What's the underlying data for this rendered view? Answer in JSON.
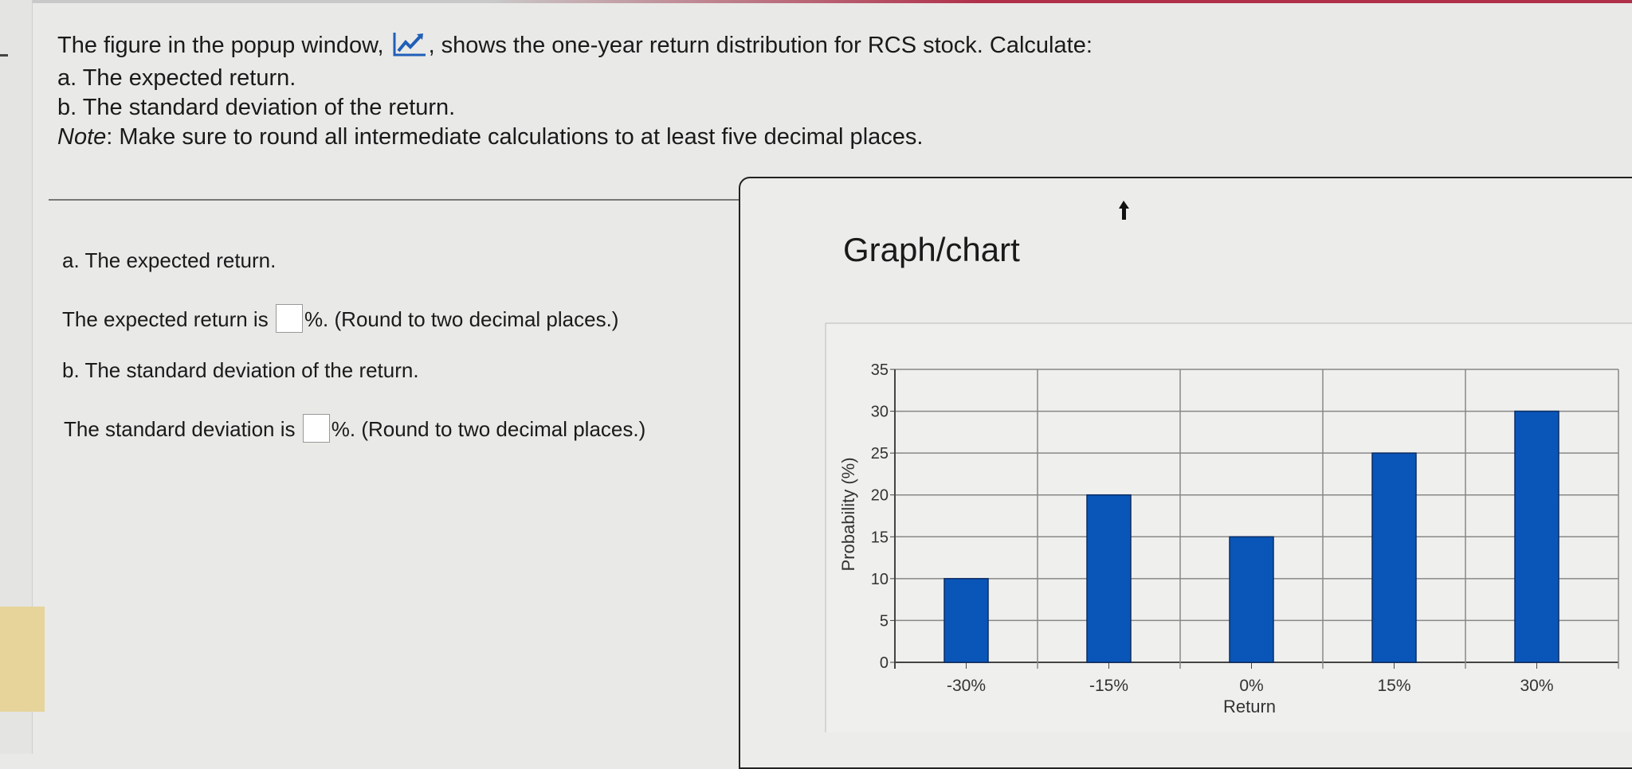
{
  "question": {
    "intro_before_icon": "The figure in the popup window,",
    "intro_after_icon": ", shows the one-year return distribution for RCS stock. Calculate:",
    "part_a": "a. The expected return.",
    "part_b": "b. The standard deviation of the return.",
    "note_label": "Note",
    "note_text": ": Make sure to round all intermediate calculations to at least five decimal places."
  },
  "answers": {
    "a_heading": "a. The expected return.",
    "a_prefix": "The expected return is",
    "a_value": "",
    "a_suffix": "%. (Round to two decimal places.)",
    "b_heading": "b. The standard deviation of the return.",
    "b_prefix": "The standard deviation is",
    "b_value": "",
    "b_suffix": "%. (Round to two decimal places.)"
  },
  "popup": {
    "title": "Graph/chart"
  },
  "colors": {
    "bar": "#0a56b8",
    "accent_bar": "#b0304a"
  },
  "chart_data": {
    "type": "bar",
    "categories": [
      "-30%",
      "-15%",
      "0%",
      "15%",
      "30%"
    ],
    "values": [
      10,
      20,
      15,
      25,
      30
    ],
    "xlabel": "Return",
    "ylabel": "Probability (%)",
    "ylim": [
      0,
      35
    ],
    "yticks": [
      "0",
      "5",
      "10",
      "15",
      "20",
      "25",
      "30",
      "35"
    ],
    "grid": true
  }
}
